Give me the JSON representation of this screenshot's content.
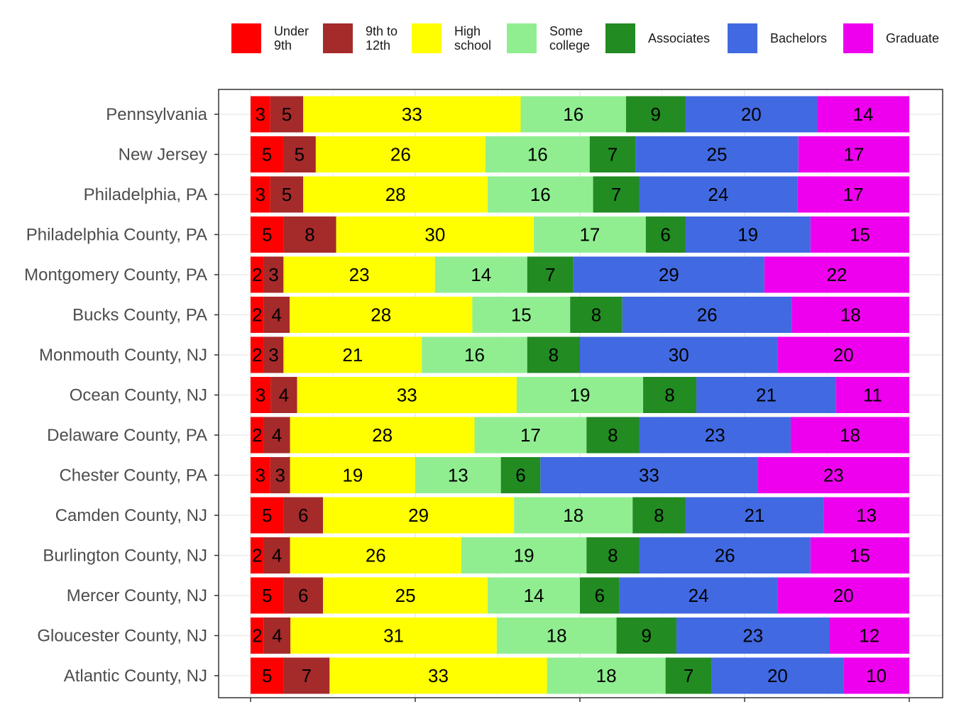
{
  "chart_data": {
    "type": "bar",
    "orientation": "horizontal",
    "stacked": true,
    "percent_scale": true,
    "title": "",
    "xlabel": "",
    "ylabel": "",
    "xlim": [
      0,
      100
    ],
    "grid": true,
    "legend_position": "top",
    "categories": [
      "Pennsylvania",
      "New Jersey",
      "Philadelphia, PA",
      "Philadelphia County, PA",
      "Montgomery County, PA",
      "Bucks County, PA",
      "Monmouth County, NJ",
      "Ocean County, NJ",
      "Delaware County, PA",
      "Chester County, PA",
      "Camden County, NJ",
      "Burlington County, NJ",
      "Mercer County, NJ",
      "Gloucester County, NJ",
      "Atlantic County, NJ"
    ],
    "series": [
      {
        "name": "Under\n9th",
        "color": "#ff0000",
        "values": [
          3,
          5,
          3,
          5,
          2,
          2,
          2,
          3,
          2,
          3,
          5,
          2,
          5,
          2,
          5
        ]
      },
      {
        "name": "9th to\n12th",
        "color": "#a52a2a",
        "values": [
          5,
          5,
          5,
          8,
          3,
          4,
          3,
          4,
          4,
          3,
          6,
          4,
          6,
          4,
          7
        ]
      },
      {
        "name": "High\nschool",
        "color": "#ffff00",
        "values": [
          33,
          26,
          28,
          30,
          23,
          28,
          21,
          33,
          28,
          19,
          29,
          26,
          25,
          31,
          33
        ]
      },
      {
        "name": "Some\ncollege",
        "color": "#90ee90",
        "values": [
          16,
          16,
          16,
          17,
          14,
          15,
          16,
          19,
          17,
          13,
          18,
          19,
          14,
          18,
          18
        ]
      },
      {
        "name": "Associates",
        "color": "#228b22",
        "values": [
          9,
          7,
          7,
          6,
          7,
          8,
          8,
          8,
          8,
          6,
          8,
          8,
          6,
          9,
          7
        ]
      },
      {
        "name": "Bachelors",
        "color": "#4169e1",
        "values": [
          20,
          25,
          24,
          19,
          29,
          26,
          30,
          21,
          23,
          33,
          21,
          26,
          24,
          23,
          20
        ]
      },
      {
        "name": "Graduate",
        "color": "#ee00ee",
        "values": [
          14,
          17,
          17,
          15,
          22,
          18,
          20,
          11,
          18,
          23,
          13,
          15,
          20,
          12,
          10
        ]
      }
    ]
  }
}
